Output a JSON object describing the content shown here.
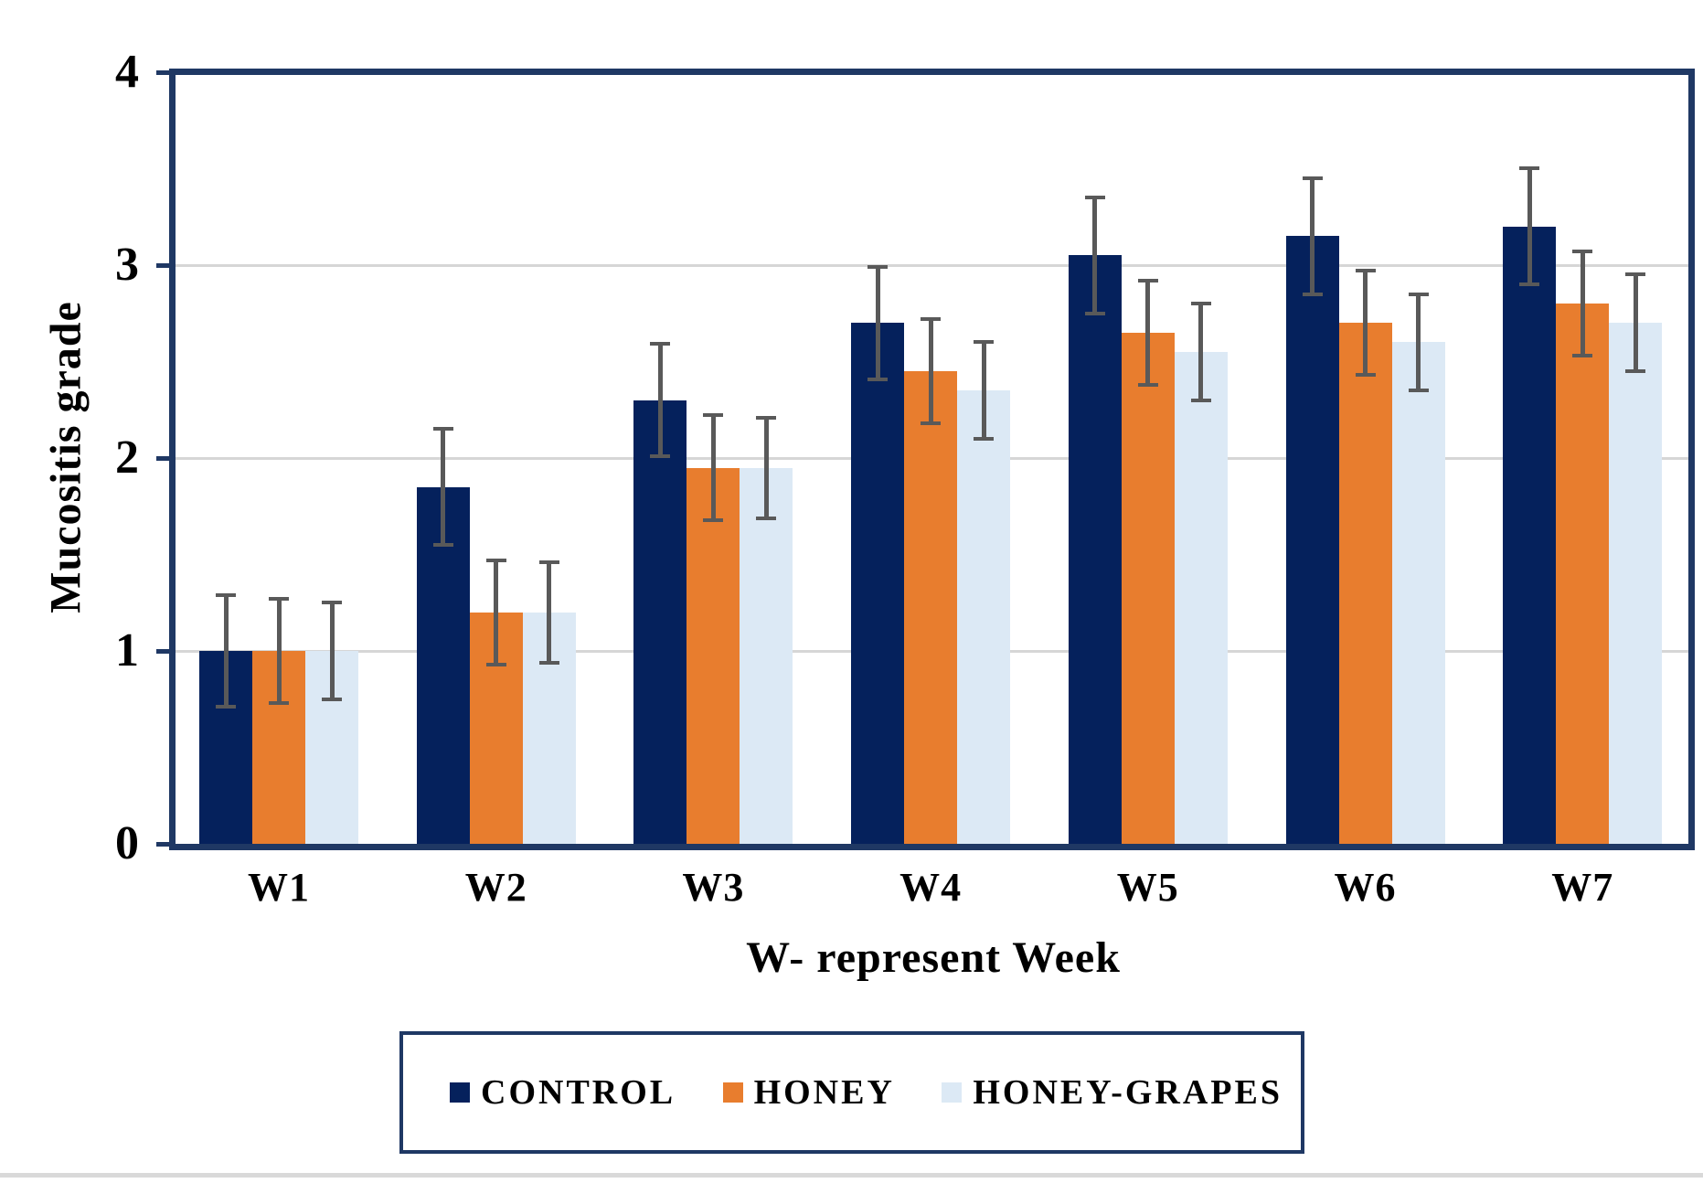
{
  "chart_data": {
    "type": "bar",
    "title": "",
    "categories": [
      "W1",
      "W2",
      "W3",
      "W4",
      "W5",
      "W6",
      "W7"
    ],
    "series": [
      {
        "name": "CONTROL",
        "color": "#05215C",
        "values": [
          1.0,
          1.85,
          2.3,
          2.7,
          3.05,
          3.15,
          3.2
        ],
        "errors": [
          0.3,
          0.31,
          0.3,
          0.3,
          0.31,
          0.31,
          0.31
        ]
      },
      {
        "name": "HONEY",
        "color": "#E87D2E",
        "values": [
          1.0,
          1.2,
          1.95,
          2.45,
          2.65,
          2.7,
          2.8
        ],
        "errors": [
          0.28,
          0.28,
          0.28,
          0.28,
          0.28,
          0.28,
          0.28
        ]
      },
      {
        "name": "HONEY-GRAPES",
        "color": "#DCE9F5",
        "values": [
          1.0,
          1.2,
          1.95,
          2.35,
          2.55,
          2.6,
          2.7
        ],
        "errors": [
          0.26,
          0.27,
          0.27,
          0.26,
          0.26,
          0.26,
          0.26
        ]
      }
    ],
    "xlabel": "W- represent Week",
    "ylabel": "Mucositis grade",
    "ylim": [
      0,
      4
    ],
    "yticks": [
      0,
      1,
      2,
      3,
      4
    ],
    "grid_values": [
      1,
      2,
      3
    ],
    "legend_position": "bottom",
    "error_bars": true,
    "error_bar_color": "#595959",
    "axis_color": "#1F3864",
    "gridline_color": "#D6D6D6",
    "plot_background": "#ffffff"
  }
}
